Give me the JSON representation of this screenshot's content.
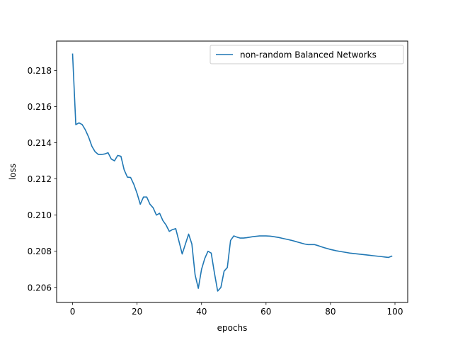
{
  "chart_data": {
    "type": "line",
    "xlabel": "epochs",
    "ylabel": "loss",
    "xlim": [
      -4.95,
      103.95
    ],
    "ylim": [
      0.20517,
      0.21962
    ],
    "xticks": [
      0,
      20,
      40,
      60,
      80,
      100
    ],
    "yticks": [
      0.206,
      0.208,
      0.21,
      0.212,
      0.214,
      0.216,
      0.218
    ],
    "ytick_labels": [
      "0.206",
      "0.208",
      "0.210",
      "0.212",
      "0.214",
      "0.216",
      "0.218"
    ],
    "grid": false,
    "legend_position": "top-right",
    "series": [
      {
        "name": "non-random Balanced Networks",
        "color": "#1f77b4",
        "x": [
          0,
          1,
          2,
          3,
          4,
          5,
          6,
          7,
          8,
          9,
          10,
          11,
          12,
          13,
          14,
          15,
          16,
          17,
          18,
          19,
          20,
          21,
          22,
          23,
          24,
          25,
          26,
          27,
          28,
          29,
          30,
          31,
          32,
          33,
          34,
          35,
          36,
          37,
          38,
          39,
          40,
          41,
          42,
          43,
          44,
          45,
          46,
          47,
          48,
          49,
          50,
          51,
          52,
          53,
          54,
          55,
          56,
          57,
          58,
          59,
          60,
          61,
          62,
          63,
          64,
          65,
          66,
          67,
          68,
          69,
          70,
          71,
          72,
          73,
          74,
          75,
          76,
          77,
          78,
          79,
          80,
          81,
          82,
          83,
          84,
          85,
          86,
          87,
          88,
          89,
          90,
          91,
          92,
          93,
          94,
          95,
          96,
          97,
          98,
          99
        ],
        "values": [
          0.2189,
          0.215,
          0.2151,
          0.215,
          0.2147,
          0.2143,
          0.2138,
          0.2135,
          0.21335,
          0.21335,
          0.21338,
          0.21345,
          0.2131,
          0.213,
          0.2133,
          0.21325,
          0.2125,
          0.2121,
          0.21208,
          0.2117,
          0.2112,
          0.2106,
          0.211,
          0.211,
          0.2106,
          0.2104,
          0.21,
          0.2101,
          0.2097,
          0.20945,
          0.2091,
          0.2092,
          0.20925,
          0.20855,
          0.20785,
          0.2084,
          0.20895,
          0.2084,
          0.2067,
          0.20595,
          0.207,
          0.2076,
          0.208,
          0.2079,
          0.2068,
          0.2058,
          0.206,
          0.2069,
          0.2071,
          0.2086,
          0.20885,
          0.20878,
          0.20873,
          0.20873,
          0.20875,
          0.20878,
          0.20881,
          0.20883,
          0.20885,
          0.20885,
          0.20885,
          0.20884,
          0.20882,
          0.20879,
          0.20876,
          0.20872,
          0.20868,
          0.20864,
          0.2086,
          0.20855,
          0.2085,
          0.20845,
          0.2084,
          0.20837,
          0.20837,
          0.20837,
          0.20832,
          0.20826,
          0.2082,
          0.20815,
          0.2081,
          0.20806,
          0.20802,
          0.20799,
          0.20796,
          0.20793,
          0.2079,
          0.20788,
          0.20786,
          0.20784,
          0.20782,
          0.2078,
          0.20778,
          0.20776,
          0.20774,
          0.20772,
          0.2077,
          0.20768,
          0.20766,
          0.20773
        ]
      }
    ]
  }
}
